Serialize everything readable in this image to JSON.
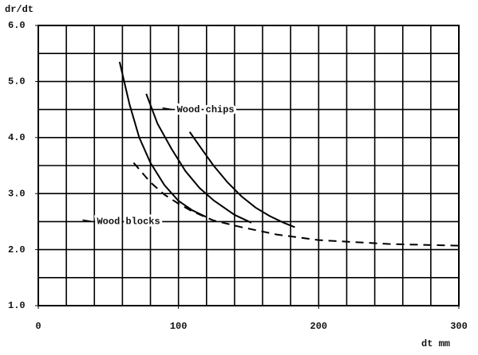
{
  "chart_data": {
    "type": "line",
    "y_label": "dr/dt",
    "x_label": "dt mm",
    "xlim": [
      0,
      300
    ],
    "ylim": [
      1,
      6
    ],
    "xticks": [
      0,
      100,
      200,
      300
    ],
    "yticks": [
      {
        "value": 1,
        "label": "1.0"
      },
      {
        "value": 2,
        "label": "2.0"
      },
      {
        "value": 3,
        "label": "3.0"
      },
      {
        "value": 4,
        "label": "4.0"
      },
      {
        "value": 5,
        "label": "5.0"
      },
      {
        "value": 6,
        "label": "6.0"
      }
    ],
    "xgrid": [
      20,
      40,
      60,
      80,
      100,
      120,
      140,
      160,
      180,
      200,
      220,
      240,
      260,
      280,
      300
    ],
    "ygrid": [
      1.5,
      2,
      2.5,
      3,
      3.5,
      4,
      4.5,
      5,
      5.5,
      6
    ],
    "grid": true,
    "series": [
      {
        "color": "#000000",
        "dashed": false,
        "x": [
          58,
          65,
          72,
          80,
          90,
          100,
          110,
          120
        ],
        "values": [
          5.35,
          4.6,
          4.0,
          3.55,
          3.15,
          2.87,
          2.7,
          2.58
        ]
      },
      {
        "color": "#000000",
        "dashed": false,
        "x": [
          77,
          85,
          95,
          105,
          115,
          125,
          140,
          152
        ],
        "values": [
          4.78,
          4.25,
          3.8,
          3.4,
          3.1,
          2.88,
          2.62,
          2.48
        ]
      },
      {
        "color": "#000000",
        "dashed": false,
        "x": [
          108,
          115,
          125,
          135,
          145,
          155,
          165,
          175,
          183
        ],
        "values": [
          4.1,
          3.85,
          3.5,
          3.2,
          2.95,
          2.75,
          2.6,
          2.48,
          2.4
        ]
      },
      {
        "color": "#000000",
        "dashed": true,
        "x": [
          68,
          80,
          90,
          100,
          110,
          125,
          145,
          170,
          200,
          250,
          300
        ],
        "values": [
          3.55,
          3.2,
          2.98,
          2.82,
          2.68,
          2.52,
          2.4,
          2.27,
          2.17,
          2.1,
          2.07
        ]
      }
    ],
    "annotations": [
      {
        "text": "Wood chips",
        "x": 92,
        "y": 4.5
      },
      {
        "text": "Wood blocks",
        "x": 35,
        "y": 2.5
      }
    ]
  }
}
